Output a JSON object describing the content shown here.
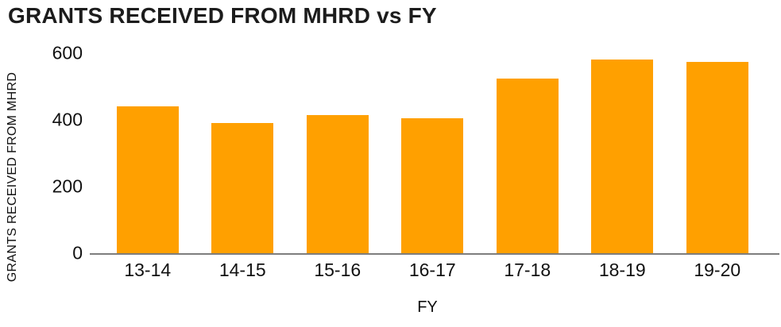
{
  "title": "GRANTS RECEIVED FROM MHRD vs FY",
  "colors": {
    "bar": "#FFA000",
    "axis_line": "#7d7d7d",
    "text": "#111111"
  },
  "chart_data": {
    "type": "bar",
    "title": "GRANTS RECEIVED FROM MHRD vs FY",
    "categories": [
      "13-14",
      "14-15",
      "15-16",
      "16-17",
      "17-18",
      "18-19",
      "19-20"
    ],
    "values": [
      440,
      390,
      415,
      405,
      525,
      580,
      575
    ],
    "xlabel": "FY",
    "ylabel": "GRANTS RECEIVED FROM MHRD",
    "yticks": [
      0,
      200,
      400,
      600
    ],
    "ylim": [
      0,
      600
    ],
    "grid": false,
    "legend": false,
    "bar_color": "#FFA000"
  }
}
